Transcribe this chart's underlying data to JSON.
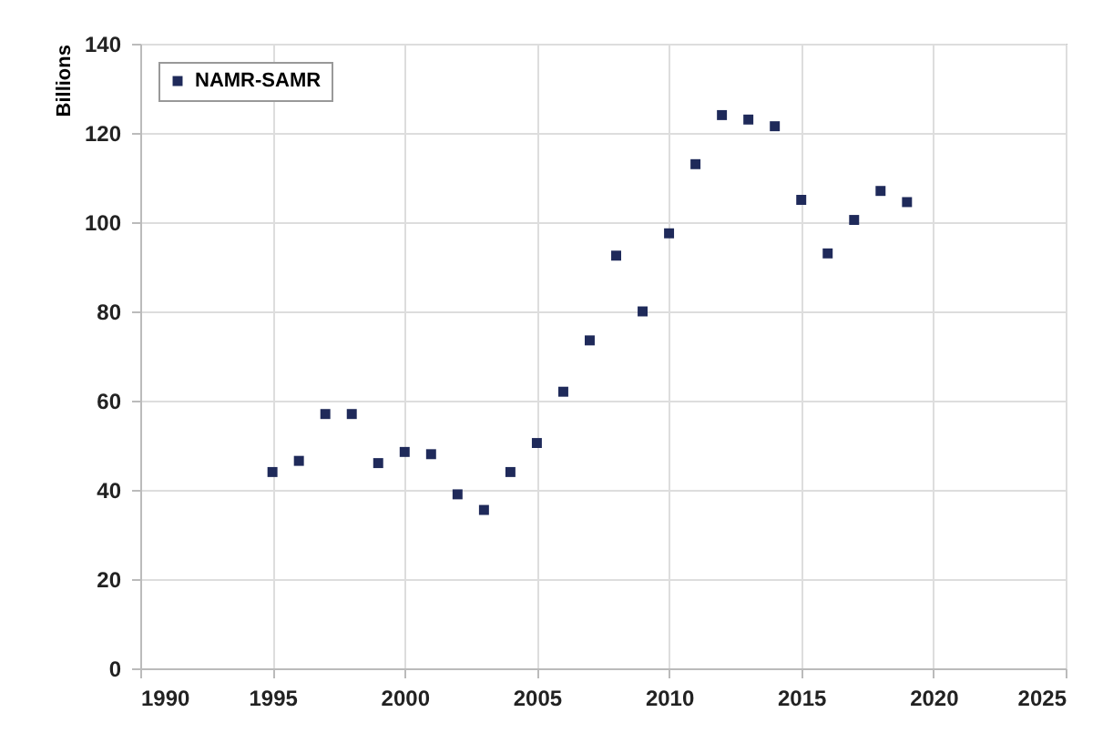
{
  "chart_data": {
    "type": "scatter",
    "ylabel": "Billions",
    "x": [
      1995,
      1996,
      1997,
      1998,
      1999,
      2000,
      2001,
      2002,
      2003,
      2004,
      2005,
      2006,
      2007,
      2008,
      2009,
      2010,
      2011,
      2012,
      2013,
      2014,
      2015,
      2016,
      2017,
      2018,
      2019
    ],
    "series": [
      {
        "name": "NAMR-SAMR",
        "color": "#1f2a5a",
        "values": [
          44,
          46.5,
          57,
          57,
          46,
          48.5,
          48,
          39,
          35.5,
          44,
          50.5,
          62,
          73.5,
          92.5,
          80,
          97.5,
          113,
          124,
          123,
          121.5,
          105,
          93,
          100.5,
          107,
          104.5
        ]
      }
    ],
    "xlim": [
      1990,
      2025
    ],
    "xticks": [
      1990,
      1995,
      2000,
      2005,
      2010,
      2015,
      2020,
      2025
    ],
    "ylim": [
      0,
      140
    ],
    "yticks": [
      0,
      20,
      40,
      60,
      80,
      100,
      120,
      140
    ],
    "grid": true,
    "legend": "top left",
    "marker": "square"
  }
}
